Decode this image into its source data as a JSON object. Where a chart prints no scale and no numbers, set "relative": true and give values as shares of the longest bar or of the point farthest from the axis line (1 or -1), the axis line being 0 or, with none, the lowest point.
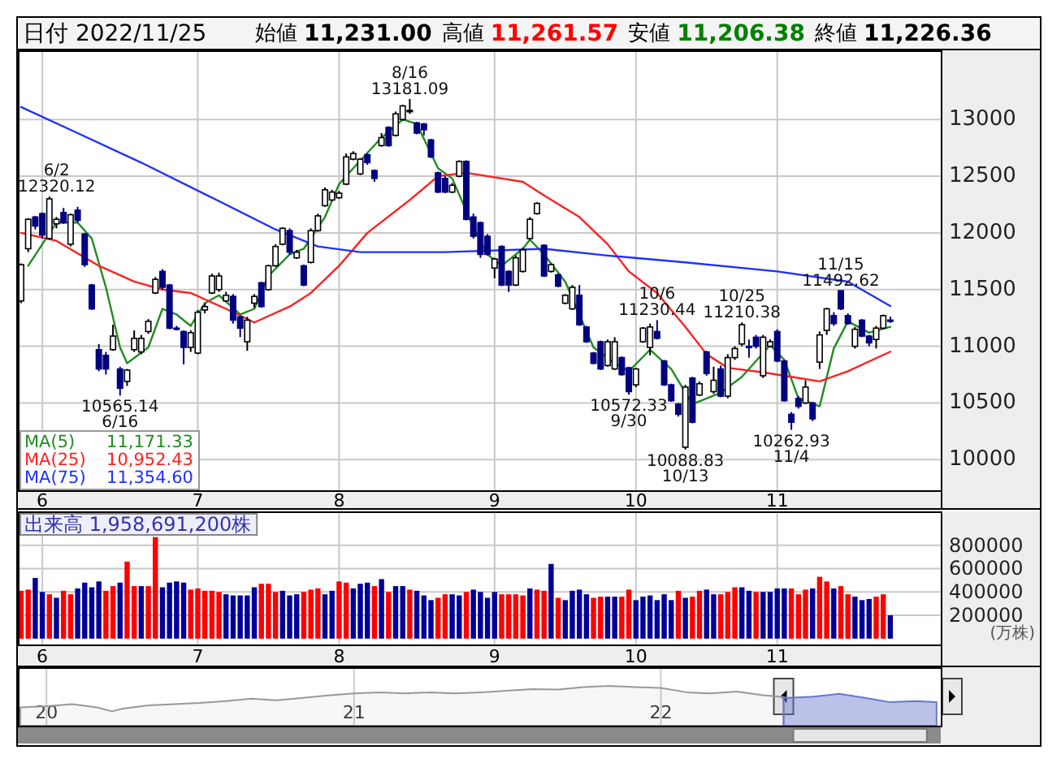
{
  "chart_data": [
    {
      "type": "candlestick",
      "title": "日付 2022/11/25",
      "categories": [
        null,
        null,
        null,
        "6",
        null,
        null,
        null,
        null,
        null,
        null,
        null,
        null,
        null,
        null,
        null,
        null,
        null,
        null,
        null,
        null,
        null,
        null,
        null,
        null,
        null,
        "7",
        null,
        null,
        null,
        null,
        null,
        null,
        null,
        null,
        null,
        null,
        null,
        null,
        null,
        null,
        null,
        null,
        null,
        null,
        null,
        "8",
        null,
        null,
        null,
        null,
        null,
        null,
        null,
        null,
        null,
        null,
        null,
        null,
        null,
        null,
        null,
        null,
        null,
        null,
        null,
        null,
        null,
        "9",
        null,
        null,
        null,
        null,
        null,
        null,
        null,
        null,
        null,
        null,
        null,
        null,
        null,
        null,
        null,
        null,
        null,
        null,
        null,
        "10",
        null,
        null,
        null,
        null,
        null,
        null,
        null,
        null,
        null,
        null,
        null,
        null,
        null,
        null,
        null,
        null,
        null,
        null,
        null,
        "11",
        null,
        null,
        null,
        null,
        null,
        null,
        null,
        null,
        null,
        null,
        null,
        null,
        null,
        null,
        null,
        null
      ],
      "ohlc": [
        [
          11400,
          11730,
          11380,
          11720
        ],
        [
          11860,
          12130,
          11830,
          12120
        ],
        [
          12140,
          12150,
          12030,
          12060
        ],
        [
          12170,
          12180,
          11950,
          11980
        ],
        [
          11950,
          12320.12,
          11940,
          12300
        ],
        [
          12080,
          12140,
          12040,
          12120
        ],
        [
          12180,
          12220,
          12080,
          12090
        ],
        [
          11900,
          12170,
          11880,
          12160
        ],
        [
          12200,
          12230,
          12090,
          12110
        ],
        [
          11990,
          12000,
          11700,
          11720
        ],
        [
          11540,
          11550,
          11320,
          11330
        ],
        [
          10970,
          11020,
          10780,
          10800
        ],
        [
          10920,
          10950,
          10750,
          10800
        ],
        [
          10970,
          11190,
          10960,
          11090
        ],
        [
          10800,
          10820,
          10565.14,
          10630
        ],
        [
          10690,
          10800,
          10650,
          10790
        ],
        [
          10970,
          11140,
          10950,
          11070
        ],
        [
          10950,
          11100,
          10930,
          11070
        ],
        [
          11130,
          11240,
          11110,
          11220
        ],
        [
          11470,
          11610,
          11460,
          11590
        ],
        [
          11660,
          11680,
          11500,
          11520
        ],
        [
          11540,
          11550,
          11150,
          11160
        ],
        [
          11160,
          11180,
          11140,
          11150
        ],
        [
          11130,
          11140,
          10840,
          10990
        ],
        [
          10990,
          11140,
          10950,
          11120
        ],
        [
          10940,
          11320,
          10930,
          11300
        ],
        [
          11320,
          11380,
          11290,
          11350
        ],
        [
          11470,
          11640,
          11460,
          11620
        ],
        [
          11500,
          11650,
          11480,
          11620
        ],
        [
          11400,
          11480,
          11390,
          11450
        ],
        [
          11440,
          11460,
          11200,
          11230
        ],
        [
          11260,
          11270,
          11080,
          11160
        ],
        [
          11040,
          11260,
          10960,
          11230
        ],
        [
          11380,
          11460,
          11340,
          11440
        ],
        [
          11560,
          11570,
          11340,
          11350
        ],
        [
          11500,
          11720,
          11490,
          11710
        ],
        [
          11710,
          11900,
          11700,
          11880
        ],
        [
          11900,
          12050,
          11890,
          12040
        ],
        [
          12020,
          12040,
          11810,
          11830
        ],
        [
          11780,
          11850,
          11770,
          11830
        ],
        [
          11710,
          11720,
          11530,
          11540
        ],
        [
          11740,
          12040,
          11730,
          12020
        ],
        [
          12020,
          12170,
          12010,
          12150
        ],
        [
          12240,
          12400,
          12230,
          12380
        ],
        [
          12290,
          12380,
          12280,
          12360
        ],
        [
          12310,
          12370,
          12300,
          12350
        ],
        [
          12430,
          12700,
          12420,
          12670
        ],
        [
          12650,
          12720,
          12640,
          12700
        ],
        [
          12520,
          12660,
          12510,
          12650
        ],
        [
          12690,
          12700,
          12600,
          12620
        ],
        [
          12550,
          12560,
          12450,
          12480
        ],
        [
          12770,
          12880,
          12760,
          12840
        ],
        [
          12930,
          12940,
          12760,
          12770
        ],
        [
          12860,
          13070,
          12850,
          13050
        ],
        [
          13000,
          13130,
          12990,
          13120
        ],
        [
          13080,
          13181.09,
          13050,
          13080
        ],
        [
          12970,
          12980,
          12870,
          12880
        ],
        [
          12960,
          12970,
          12860,
          12910
        ],
        [
          12820,
          12830,
          12660,
          12670
        ],
        [
          12530,
          12540,
          12350,
          12360
        ],
        [
          12480,
          12500,
          12350,
          12360
        ],
        [
          12360,
          12440,
          12350,
          12420
        ],
        [
          12500,
          12640,
          12490,
          12630
        ],
        [
          12630,
          12640,
          12110,
          12120
        ],
        [
          12140,
          12170,
          11950,
          11970
        ],
        [
          12090,
          12100,
          11780,
          11810
        ],
        [
          11970,
          11990,
          11800,
          11810
        ],
        [
          11690,
          11780,
          11600,
          11770
        ],
        [
          11880,
          11890,
          11530,
          11540
        ],
        [
          11660,
          11670,
          11480,
          11540
        ],
        [
          11540,
          11800,
          11530,
          11780
        ],
        [
          11660,
          11870,
          11650,
          11850
        ],
        [
          11950,
          12140,
          11940,
          12120
        ],
        [
          12170,
          12270,
          12160,
          12260
        ],
        [
          11890,
          11900,
          11610,
          11620
        ],
        [
          11660,
          11730,
          11650,
          11720
        ],
        [
          11630,
          11640,
          11520,
          11530
        ],
        [
          11380,
          11460,
          11370,
          11450
        ],
        [
          11330,
          11540,
          11320,
          11520
        ],
        [
          11450,
          11540,
          11180,
          11190
        ],
        [
          11170,
          11180,
          11030,
          11040
        ],
        [
          10940,
          10950,
          10840,
          10850
        ],
        [
          11040,
          11050,
          10790,
          10800
        ],
        [
          10830,
          11060,
          10820,
          11040
        ],
        [
          10800,
          11080,
          10790,
          11040
        ],
        [
          10900,
          10910,
          10740,
          10750
        ],
        [
          10810,
          10820,
          10572.33,
          10600
        ],
        [
          10660,
          10810,
          10640,
          10800
        ],
        [
          11040,
          11170,
          11030,
          11160
        ],
        [
          10990,
          11200,
          10920,
          11170
        ],
        [
          11130,
          11230.44,
          11060,
          11070
        ],
        [
          10870,
          10880,
          10650,
          10660
        ],
        [
          10660,
          10670,
          10510,
          10520
        ],
        [
          10490,
          10500,
          10380,
          10400
        ],
        [
          10110,
          10660,
          10088.83,
          10640
        ],
        [
          10720,
          10730,
          10320,
          10330
        ],
        [
          10570,
          10690,
          10560,
          10670
        ],
        [
          10950,
          10960,
          10740,
          10760
        ],
        [
          10600,
          10820,
          10580,
          10700
        ],
        [
          10800,
          10830,
          10550,
          10560
        ],
        [
          10560,
          10930,
          10540,
          10900
        ],
        [
          10900,
          11000,
          10880,
          10980
        ],
        [
          11020,
          11210.38,
          11000,
          11190
        ],
        [
          11000,
          11060,
          10900,
          10990
        ],
        [
          11080,
          11100,
          10980,
          11000
        ],
        [
          10740,
          11100,
          10720,
          11080
        ],
        [
          11000,
          11060,
          10990,
          11040
        ],
        [
          11130,
          11150,
          10860,
          10870
        ],
        [
          10870,
          10880,
          10510,
          10520
        ],
        [
          10400,
          10420,
          10262.93,
          10330
        ],
        [
          10540,
          10560,
          10450,
          10470
        ],
        [
          10500,
          10700,
          10490,
          10640
        ],
        [
          10500,
          10510,
          10340,
          10360
        ],
        [
          10860,
          11130,
          10800,
          11100
        ],
        [
          11140,
          11340,
          11100,
          11330
        ],
        [
          11270,
          11300,
          11180,
          11200
        ],
        [
          11490,
          11492.62,
          11320,
          11330
        ],
        [
          11270,
          11290,
          11190,
          11200
        ],
        [
          11000,
          11170,
          10980,
          11150
        ],
        [
          11230,
          11240,
          11080,
          11090
        ],
        [
          11090,
          11100,
          11000,
          11030
        ],
        [
          11060,
          11180,
          10980,
          11160
        ],
        [
          11160,
          11280,
          11150,
          11270
        ],
        [
          11231.0,
          11261.57,
          11206.38,
          11226.36
        ]
      ],
      "series": [
        {
          "name": "MA(5) 11,171.33",
          "type": "line",
          "color": "#228b22",
          "values": [
            null,
            11710,
            null,
            11900,
            null,
            12090,
            null,
            null,
            12090,
            null,
            11950,
            null,
            11520,
            null,
            10990,
            10850,
            null,
            null,
            10990,
            null,
            11330,
            null,
            11280,
            null,
            11180,
            null,
            11380,
            null,
            11450,
            null,
            null,
            11280,
            null,
            11330,
            null,
            11620,
            null,
            null,
            11810,
            null,
            11860,
            null,
            null,
            12140,
            null,
            12430,
            null,
            12570,
            null,
            null,
            null,
            12840,
            null,
            null,
            13000,
            null,
            12960,
            null,
            null,
            12570,
            null,
            12480,
            null,
            null,
            12050,
            null,
            11810,
            null,
            11710,
            null,
            null,
            11860,
            11940,
            null,
            11810,
            null,
            null,
            11570,
            null,
            null,
            null,
            10990,
            null,
            null,
            10850,
            null,
            10780,
            null,
            null,
            10970,
            null,
            null,
            10800,
            null,
            null,
            10490,
            null,
            null,
            null,
            10590,
            null,
            null,
            10730,
            null,
            null,
            null,
            11010,
            null,
            10880,
            null,
            10540,
            null,
            null,
            10470,
            null,
            10980,
            null,
            11220,
            null,
            null,
            11120,
            null,
            null,
            11171.33
          ]
        },
        {
          "name": "MA(25) 10,952.43",
          "type": "line",
          "color": "#ff2020",
          "values": [
            12000,
            null,
            null,
            null,
            null,
            11930,
            null,
            null,
            null,
            null,
            null,
            11710,
            null,
            null,
            null,
            null,
            11570,
            null,
            null,
            null,
            11500,
            null,
            null,
            null,
            11470,
            null,
            null,
            null,
            null,
            11330,
            null,
            null,
            null,
            11210,
            null,
            null,
            null,
            null,
            11350,
            null,
            null,
            11470,
            null,
            null,
            null,
            11710,
            null,
            null,
            null,
            12000,
            null,
            null,
            null,
            null,
            null,
            12290,
            null,
            null,
            null,
            12500,
            null,
            null,
            null,
            12530,
            null,
            null,
            null,
            null,
            null,
            null,
            null,
            12450,
            null,
            null,
            12330,
            null,
            null,
            null,
            null,
            12140,
            null,
            null,
            null,
            11900,
            null,
            null,
            11660,
            null,
            null,
            null,
            11470,
            null,
            null,
            null,
            11170,
            null,
            null,
            10930,
            null,
            null,
            10810,
            null,
            null,
            null,
            null,
            10770,
            null,
            null,
            null,
            10730,
            null,
            null,
            null,
            10690,
            null,
            null,
            null,
            10780,
            null,
            null,
            null,
            null,
            null,
            10952.43
          ]
        },
        {
          "name": "MA(75) 11,354.60",
          "type": "line",
          "color": "#2030ff",
          "values": [
            13110,
            null,
            null,
            null,
            null,
            null,
            null,
            null,
            12880,
            null,
            null,
            null,
            null,
            null,
            null,
            null,
            null,
            12620,
            null,
            null,
            null,
            null,
            null,
            null,
            null,
            null,
            null,
            null,
            12280,
            null,
            null,
            null,
            null,
            null,
            null,
            null,
            12030,
            null,
            null,
            null,
            null,
            null,
            11880,
            null,
            null,
            null,
            null,
            null,
            11830,
            null,
            null,
            null,
            null,
            null,
            null,
            null,
            null,
            null,
            null,
            null,
            11830,
            null,
            null,
            null,
            null,
            null,
            null,
            null,
            null,
            null,
            null,
            null,
            null,
            null,
            11860,
            null,
            null,
            null,
            null,
            null,
            null,
            null,
            null,
            11800,
            null,
            null,
            null,
            null,
            null,
            null,
            null,
            null,
            null,
            null,
            11740,
            null,
            null,
            null,
            null,
            null,
            null,
            null,
            null,
            null,
            null,
            null,
            null,
            11660,
            null,
            null,
            null,
            null,
            null,
            null,
            null,
            null,
            null,
            11570,
            null,
            null,
            null,
            null,
            null,
            11354.6
          ]
        }
      ],
      "ylim": [
        9730,
        13610
      ],
      "yticks": [
        10000,
        10500,
        11000,
        11500,
        12000,
        12500,
        13000
      ],
      "grid": true,
      "annotations": [
        "始値 11,231.00",
        "高値 11,261.57",
        "安値 11,206.38",
        "終値 11,226.36",
        {
          "text": "6/2\n12320.12",
          "y": 12320.12
        },
        {
          "text": "10565.14\n6/16",
          "y": 10565.14
        },
        {
          "text": "8/16\n13181.09",
          "y": 13181.09
        },
        {
          "text": "10572.33\n9/30",
          "y": 10572.33
        },
        {
          "text": "10/6\n11230.44",
          "y": 11230.44
        },
        {
          "text": "10088.83\n10/13",
          "y": 10088.83
        },
        {
          "text": "10/25\n11210.38",
          "y": 11210.38
        },
        {
          "text": "10262.93\n11/4",
          "y": 10262.93
        },
        {
          "text": "11/15\n11492.62",
          "y": 11492.62
        }
      ]
    },
    {
      "type": "bar",
      "title": "出来高 1,958,691,200株",
      "categories": [
        null,
        null,
        null,
        "6",
        null,
        null,
        null,
        null,
        null,
        null,
        null,
        null,
        null,
        null,
        null,
        null,
        null,
        null,
        null,
        null,
        null,
        null,
        null,
        null,
        null,
        "7",
        null,
        null,
        null,
        null,
        null,
        null,
        null,
        null,
        null,
        null,
        null,
        null,
        null,
        null,
        null,
        null,
        null,
        null,
        null,
        "8",
        null,
        null,
        null,
        null,
        null,
        null,
        null,
        null,
        null,
        null,
        null,
        null,
        null,
        null,
        null,
        null,
        null,
        null,
        null,
        null,
        null,
        "9",
        null,
        null,
        null,
        null,
        null,
        null,
        null,
        null,
        null,
        null,
        null,
        null,
        null,
        null,
        null,
        null,
        null,
        null,
        null,
        "10",
        null,
        null,
        null,
        null,
        null,
        null,
        null,
        null,
        null,
        null,
        null,
        null,
        null,
        null,
        null,
        null,
        null,
        null,
        null,
        "11",
        null,
        null,
        null,
        null,
        null,
        null,
        null,
        null,
        null,
        null,
        null,
        null,
        null,
        null,
        null,
        null
      ],
      "values": [
        410000,
        420000,
        520000,
        400000,
        380000,
        350000,
        410000,
        380000,
        430000,
        480000,
        440000,
        490000,
        410000,
        450000,
        480000,
        660000,
        450000,
        450000,
        450000,
        870000,
        440000,
        480000,
        490000,
        480000,
        420000,
        430000,
        410000,
        410000,
        400000,
        380000,
        370000,
        370000,
        370000,
        440000,
        470000,
        470000,
        400000,
        410000,
        370000,
        380000,
        400000,
        420000,
        430000,
        380000,
        410000,
        490000,
        480000,
        430000,
        470000,
        480000,
        450000,
        510000,
        400000,
        450000,
        450000,
        420000,
        410000,
        370000,
        330000,
        350000,
        380000,
        380000,
        370000,
        400000,
        420000,
        400000,
        350000,
        400000,
        380000,
        380000,
        380000,
        370000,
        430000,
        420000,
        410000,
        640000,
        350000,
        330000,
        410000,
        420000,
        380000,
        350000,
        360000,
        360000,
        360000,
        360000,
        420000,
        330000,
        360000,
        370000,
        330000,
        380000,
        330000,
        410000,
        350000,
        360000,
        410000,
        420000,
        380000,
        380000,
        400000,
        440000,
        440000,
        410000,
        400000,
        400000,
        400000,
        430000,
        430000,
        430000,
        380000,
        420000,
        430000,
        530000,
        490000,
        430000,
        450000,
        380000,
        360000,
        330000,
        340000,
        360000,
        380000,
        200000
      ],
      "colors": [
        "#ff0000",
        "#ff0000",
        "#000099",
        "#000099",
        "#ff0000",
        "#000099",
        "#ff0000",
        "#ff0000",
        "#000099",
        "#000099",
        "#000099",
        "#000099",
        "#ff0000",
        "#ff0000",
        "#000099",
        "#ff0000",
        "#ff0000",
        "#000099",
        "#ff0000",
        "#ff0000",
        "#000099",
        "#000099",
        "#000099",
        "#000099",
        "#ff0000",
        "#ff0000",
        "#ff0000",
        "#ff0000",
        "#ff0000",
        "#000099",
        "#000099",
        "#000099",
        "#000099",
        "#000099",
        "#ff0000",
        "#ff0000",
        "#ff0000",
        "#000099",
        "#000099",
        "#000099",
        "#ff0000",
        "#ff0000",
        "#ff0000",
        "#000099",
        "#000099",
        "#ff0000",
        "#ff0000",
        "#000099",
        "#000099",
        "#000099",
        "#ff0000",
        "#000099",
        "#ff0000",
        "#000099",
        "#000099",
        "#ff0000",
        "#000099",
        "#000099",
        "#000099",
        "#ff0000",
        "#ff0000",
        "#000099",
        "#000099",
        "#ff0000",
        "#000099",
        "#000099",
        "#000099",
        "#000099",
        "#ff0000",
        "#ff0000",
        "#ff0000",
        "#ff0000",
        "#000099",
        "#ff0000",
        "#ff0000",
        "#000099",
        "#ff0000",
        "#000099",
        "#000099",
        "#000099",
        "#000099",
        "#ff0000",
        "#ff0000",
        "#000099",
        "#000099",
        "#ff0000",
        "#ff0000",
        "#000099",
        "#000099",
        "#000099",
        "#000099",
        "#000099",
        "#000099",
        "#ff0000",
        "#000099",
        "#ff0000",
        "#ff0000",
        "#000099",
        "#000099",
        "#ff0000",
        "#ff0000",
        "#ff0000",
        "#000099",
        "#000099",
        "#ff0000",
        "#000099",
        "#000099",
        "#000099",
        "#000099",
        "#ff0000",
        "#ff0000",
        "#ff0000",
        "#000099",
        "#ff0000",
        "#ff0000",
        "#000099",
        "#ff0000",
        "#ff0000",
        "#000099",
        "#000099",
        "#000099",
        "#ff0000",
        "#ff0000",
        "#000099"
      ],
      "ylim": [
        -50000,
        1090000
      ],
      "yticks": [
        200000,
        400000,
        600000,
        800000
      ],
      "grid": true,
      "annotations": [
        "(万株)"
      ]
    },
    {
      "type": "area",
      "relative": true,
      "xlim": [
        "2019-11-28",
        "2022-11-30"
      ],
      "xticks": [
        {
          "value": "2020-01-01",
          "label": "20"
        },
        {
          "value": "2021-01-01",
          "label": "21"
        },
        {
          "value": "2022-01-01",
          "label": "22"
        }
      ],
      "grid": "x",
      "series": [
        {
          "color": "#999999",
          "x": [
            "2019-12",
            "2020-01",
            "2020-02",
            "2020-03",
            "2020-03-19",
            "2020-04",
            "2020-05",
            "2020-06",
            "2020-07",
            "2020-08",
            "2020-09",
            "2020-10",
            "2020-11",
            "2020-12",
            "2021-01",
            "2021-02",
            "2021-03",
            "2021-04",
            "2021-05",
            "2021-06",
            "2021-07",
            "2021-08",
            "2021-09",
            "2021-10",
            "2021-11",
            "2021-12",
            "2022-01",
            "2022-02",
            "2022-03",
            "2022-04",
            "2022-05",
            "2022-05-27"
          ],
          "values": [
            0.46,
            0.49,
            0.54,
            0.46,
            0.36,
            0.43,
            0.51,
            0.54,
            0.57,
            0.62,
            0.68,
            0.64,
            0.7,
            0.76,
            0.81,
            0.84,
            0.81,
            0.84,
            0.81,
            0.84,
            0.88,
            0.92,
            0.91,
            0.97,
            1,
            0.97,
            0.95,
            0.84,
            0.81,
            0.86,
            0.77,
            0.72
          ]
        },
        {
          "color": "#6677cc",
          "x": [
            "2022-05-27",
            "2022-06",
            "2022-07",
            "2022-08",
            "2022-09",
            "2022-10",
            "2022-11",
            "2022-11-25"
          ],
          "values": [
            0.72,
            0.7,
            0.73,
            0.8,
            0.7,
            0.59,
            0.62,
            0.59
          ]
        }
      ]
    }
  ]
}
